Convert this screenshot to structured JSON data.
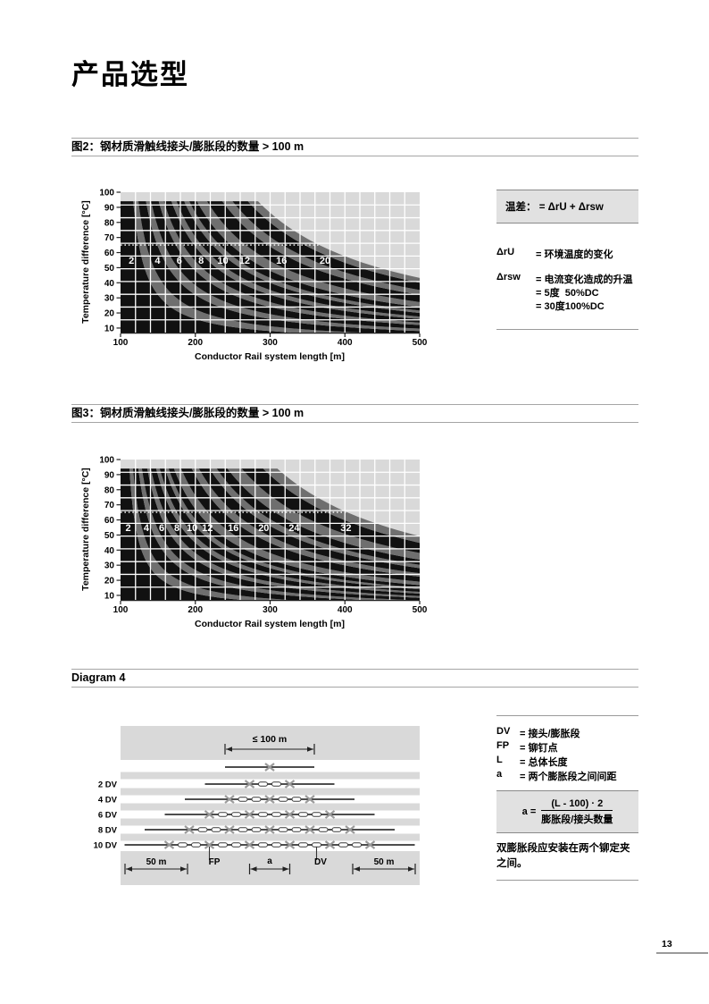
{
  "page": {
    "title": "产品选型",
    "page_number": "13"
  },
  "colors": {
    "plot_bg": "#d9d9d9",
    "band_dark": "#111111",
    "band_gray": "#6f6f6f",
    "grid": "#ffffff",
    "panel_bg": "#e1e1e1",
    "rule": "#9a9a9a",
    "x_mark": "#9b9b9b",
    "diagram_band": "#d9d9d9"
  },
  "figure2": {
    "header": "图2：钢材质滑触线接头/膨胀段的数量  > 100 m",
    "panel": {
      "formula": "温差： = ΔrU + Δrsw",
      "legend1_term": "ΔrU",
      "legend1_def": "=  环境温度的变化",
      "legend2_term": "Δrsw",
      "legend2_def": "=  电流变化造成的升温",
      "legend2_sub1": "= 5度  50%DC",
      "legend2_sub2": "= 30度100%DC"
    }
  },
  "figure3": {
    "header": "图3：铜材质滑触线接头/膨胀段的数量  > 100 m"
  },
  "diagram4": {
    "header": "Diagram 4",
    "labels": {
      "max_length": "≤ 100 m",
      "fifty_m": "50 m",
      "fp": "FP",
      "a": "a",
      "dv": "DV"
    },
    "rows": [
      {
        "label": "",
        "dv": 0
      },
      {
        "label": "2 DV",
        "dv": 2
      },
      {
        "label": "4 DV",
        "dv": 4
      },
      {
        "label": "6 DV",
        "dv": 6
      },
      {
        "label": "8 DV",
        "dv": 8
      },
      {
        "label": "10 DV",
        "dv": 10
      }
    ],
    "legend": [
      {
        "term": "DV",
        "def": "=  接头/膨胀段"
      },
      {
        "term": "FP",
        "def": "=  铆钉点"
      },
      {
        "term": "L",
        "def": "=  总体长度"
      },
      {
        "term": "a",
        "def": "=  两个膨胀段之间间距"
      }
    ],
    "formula": {
      "lead": "a =",
      "numerator": "(L - 100) · 2",
      "denominator": "膨胀段/接头数量"
    },
    "note": "双膨胀段应安装在两个铆定夹之间。"
  },
  "chart_data": [
    {
      "type": "area",
      "title": "图2 钢材质滑触线 接头/膨胀段的数量 > 100 m",
      "xlabel": "Conductor Rail system length [m]",
      "ylabel": "Temperature difference [°C]",
      "xlim": [
        100,
        500
      ],
      "ylim": [
        10,
        100
      ],
      "x_ticks": [
        100,
        200,
        300,
        400,
        500
      ],
      "y_ticks": [
        10,
        20,
        30,
        40,
        50,
        60,
        70,
        80,
        90,
        100
      ],
      "bands": [
        2,
        4,
        6,
        8,
        10,
        12,
        16,
        20
      ],
      "boundary_constant_per_section": 800,
      "boundary_model": "ΔT = K·N / (L − 100), capped at plateau_max",
      "plateau_max": 94,
      "dotted_line_y": 65,
      "band_label_row_y": 55,
      "grid": true,
      "legend_position": "none"
    },
    {
      "type": "area",
      "title": "图3 铜材质滑触线 接头/膨胀段的数量 > 100 m",
      "xlabel": "Conductor Rail system length [m]",
      "ylabel": "Temperature difference [°C]",
      "xlim": [
        100,
        500
      ],
      "ylim": [
        10,
        100
      ],
      "x_ticks": [
        100,
        200,
        300,
        400,
        500
      ],
      "y_ticks": [
        10,
        20,
        30,
        40,
        50,
        60,
        70,
        80,
        90,
        100
      ],
      "bands": [
        2,
        4,
        6,
        8,
        10,
        12,
        16,
        20,
        24,
        32
      ],
      "boundary_constant_per_section": 560,
      "boundary_model": "ΔT = K·N / (L − 100), capped at plateau_max",
      "plateau_max": 94,
      "dotted_line_y": 65,
      "band_label_row_y": 55,
      "grid": true,
      "legend_position": "none"
    }
  ]
}
